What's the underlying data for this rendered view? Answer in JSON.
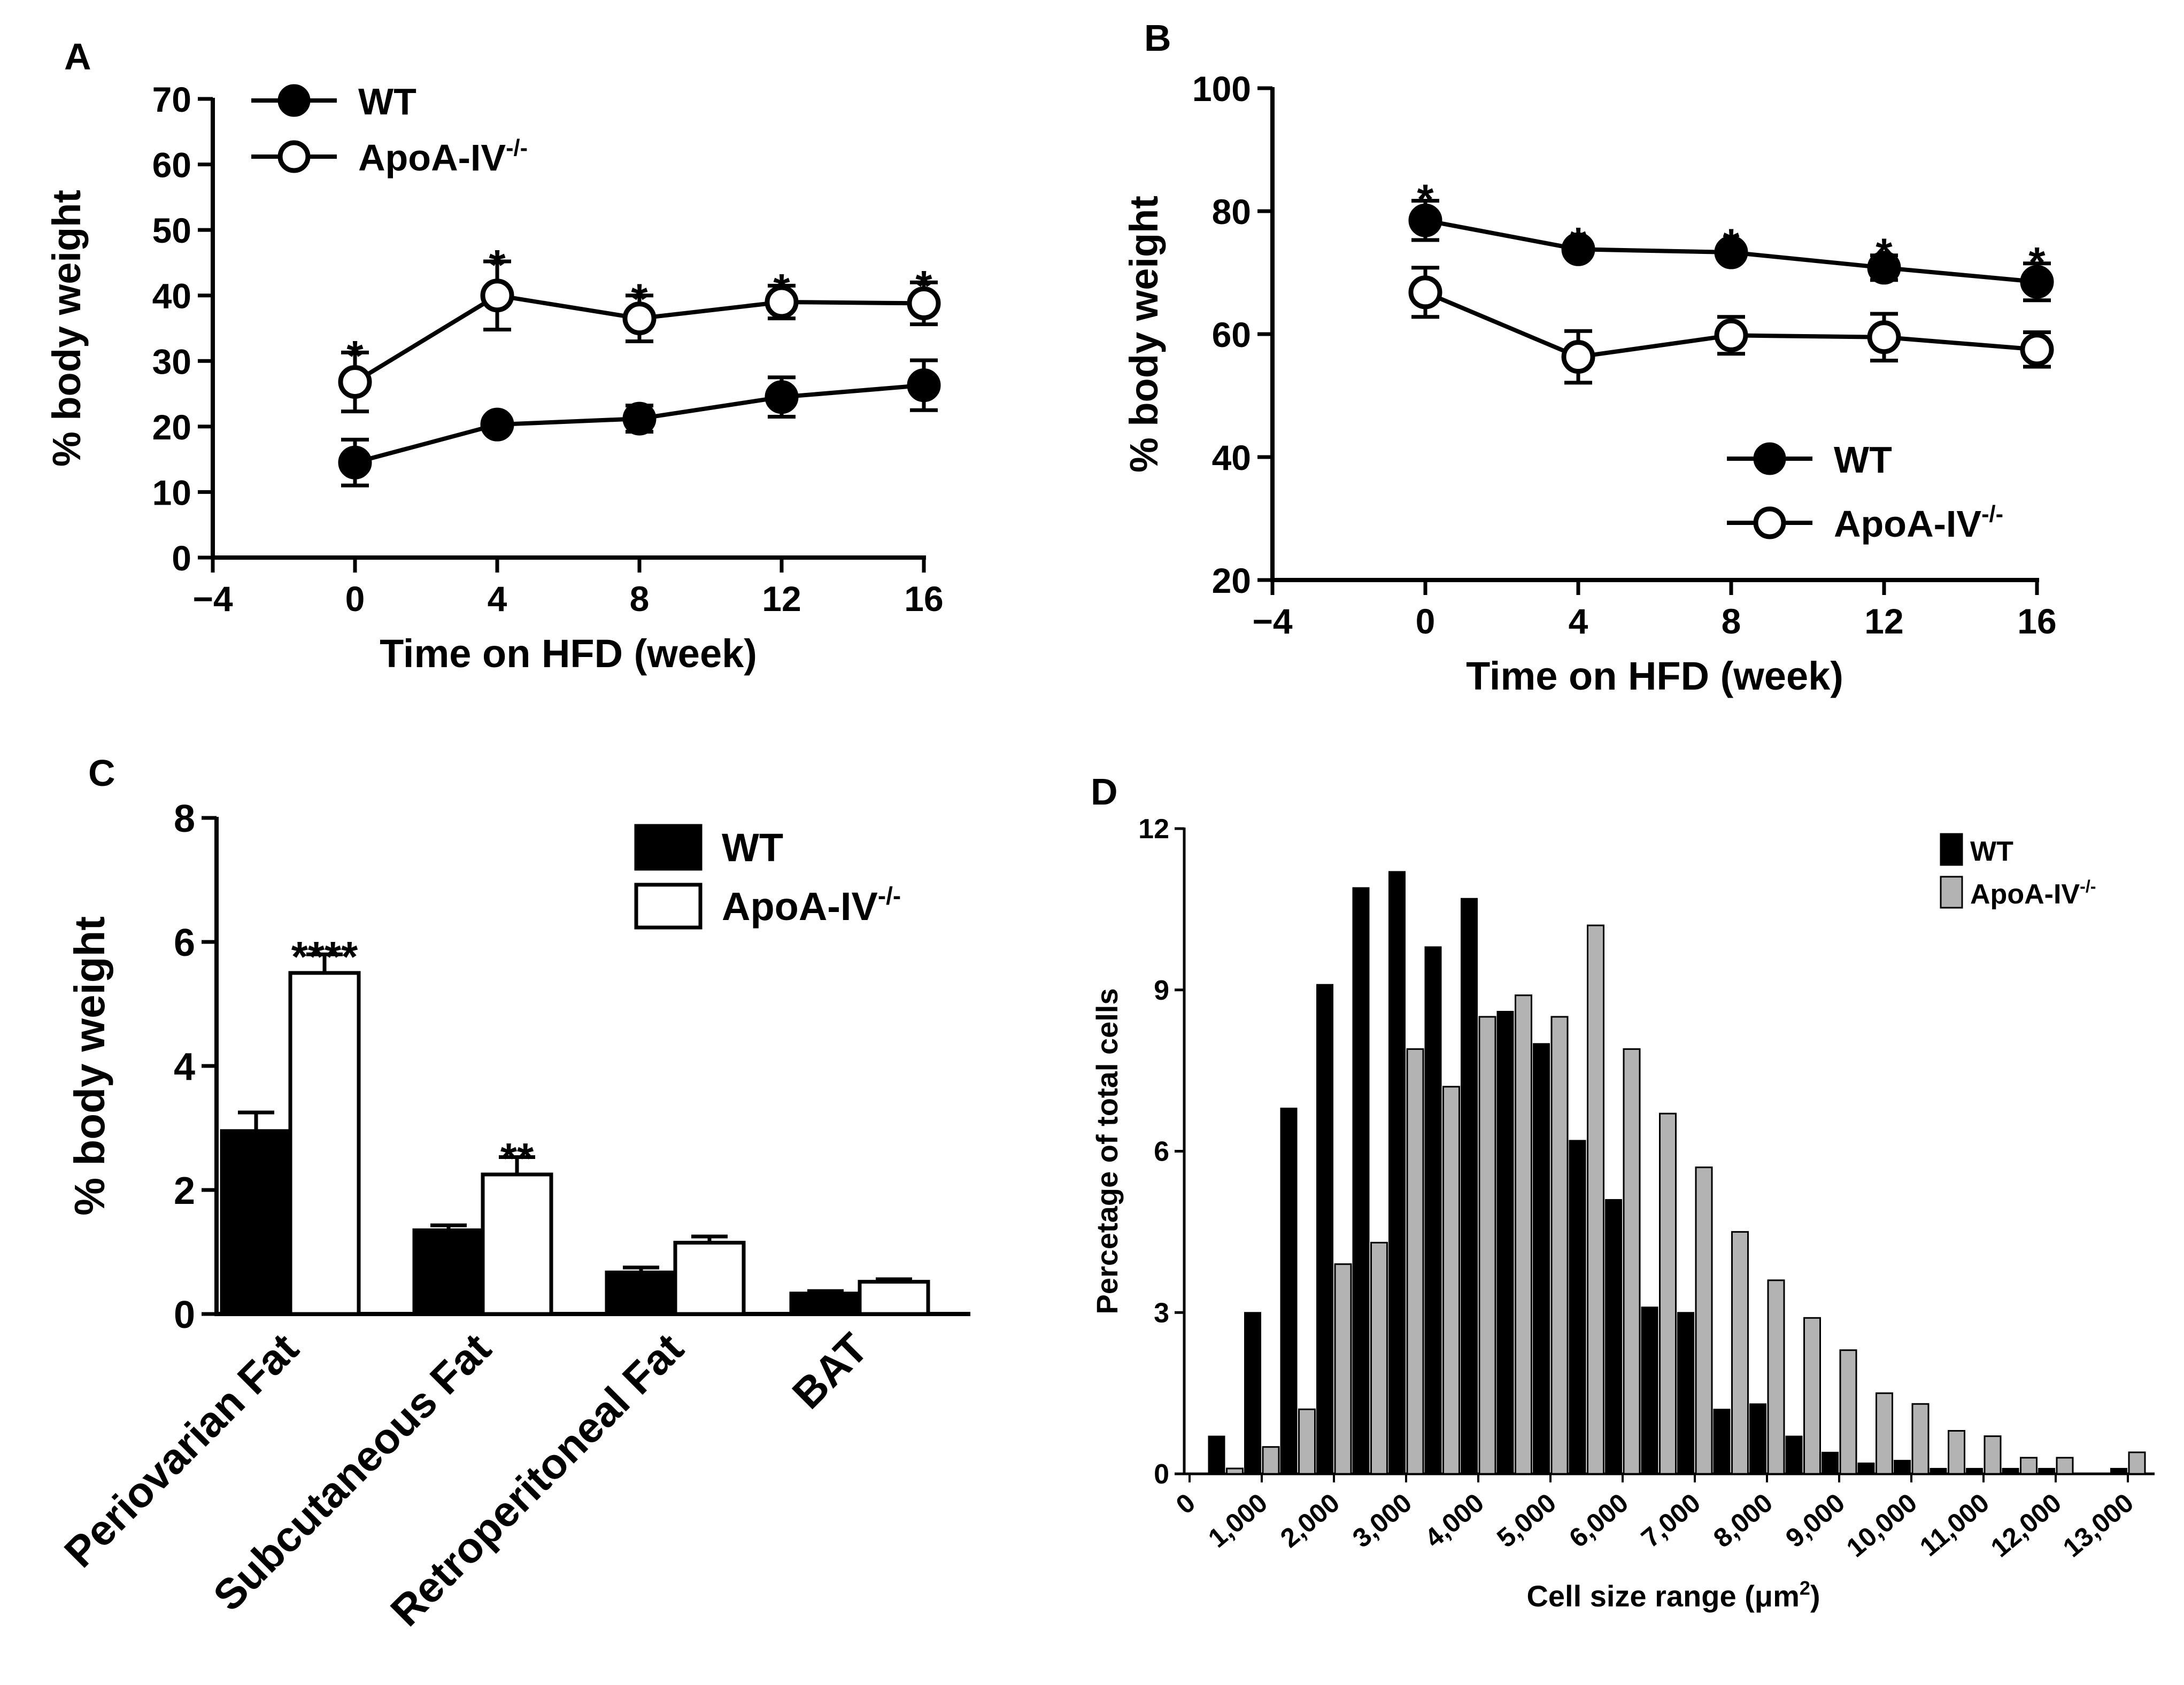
{
  "chart_data": [
    {
      "panel": "A",
      "type": "line",
      "xlabel": "Time on HFD (week)",
      "ylabel": "% body weight",
      "xlim": [
        -4,
        16
      ],
      "ylim": [
        0,
        70
      ],
      "xticks": [
        -4,
        0,
        4,
        8,
        12,
        16
      ],
      "xtick_labels": [
        "−4",
        "0",
        "4",
        "8",
        "12",
        "16"
      ],
      "yticks": [
        0,
        10,
        20,
        30,
        40,
        50,
        60,
        70
      ],
      "ytick_labels": [
        "0",
        "10",
        "20",
        "30",
        "40",
        "50",
        "60",
        "70"
      ],
      "legend": [
        {
          "name": "WT",
          "sup": "",
          "marker": "filled-circle"
        },
        {
          "name": "ApoA-IV",
          "sup": "-/-",
          "marker": "open-circle"
        }
      ],
      "series": [
        {
          "name": "WT",
          "x": [
            0,
            4,
            8,
            12,
            16
          ],
          "y": [
            14.5,
            20.3,
            21.2,
            24.5,
            26.3
          ],
          "err": [
            3.5,
            1.0,
            2.0,
            3.0,
            3.8
          ]
        },
        {
          "name": "ApoA-IV-/-",
          "x": [
            0,
            4,
            8,
            12,
            16
          ],
          "y": [
            26.8,
            40.0,
            36.5,
            39.0,
            38.8
          ],
          "err": [
            4.5,
            5.2,
            3.5,
            2.5,
            3.2
          ]
        }
      ],
      "annotations": [
        {
          "text": "*",
          "x": 0,
          "y": 31.8
        },
        {
          "text": "*",
          "x": 4,
          "y": 45.7
        },
        {
          "text": "*",
          "x": 8,
          "y": 40.5
        },
        {
          "text": "*",
          "x": 12,
          "y": 42.0
        },
        {
          "text": "*",
          "x": 16,
          "y": 42.5
        }
      ]
    },
    {
      "panel": "B",
      "type": "line",
      "xlabel": "Time on HFD (week)",
      "ylabel": "% body weight",
      "xlim": [
        -4,
        16
      ],
      "ylim": [
        20,
        100
      ],
      "xticks": [
        -4,
        0,
        4,
        8,
        12,
        16
      ],
      "xtick_labels": [
        "−4",
        "0",
        "4",
        "8",
        "12",
        "16"
      ],
      "yticks": [
        20,
        40,
        60,
        80,
        100
      ],
      "ytick_labels": [
        "20",
        "40",
        "60",
        "80",
        "100"
      ],
      "legend": [
        {
          "name": "WT",
          "sup": "",
          "marker": "filled-circle"
        },
        {
          "name": "ApoA-IV",
          "sup": "-/-",
          "marker": "open-circle"
        }
      ],
      "series": [
        {
          "name": "WT",
          "x": [
            0,
            4,
            8,
            12,
            16
          ],
          "y": [
            78.5,
            73.8,
            73.3,
            70.8,
            68.5
          ],
          "err": [
            3.2,
            0.8,
            1.0,
            2.0,
            3.0
          ]
        },
        {
          "name": "ApoA-IV-/-",
          "x": [
            0,
            4,
            8,
            12,
            16
          ],
          "y": [
            66.8,
            56.3,
            59.8,
            59.5,
            57.5
          ],
          "err": [
            4.0,
            4.2,
            3.0,
            3.8,
            2.8
          ]
        }
      ],
      "annotations": [
        {
          "text": "*",
          "x": 0,
          "y": 83.0
        },
        {
          "text": "*",
          "x": 4,
          "y": 76.0
        },
        {
          "text": "*",
          "x": 8,
          "y": 75.8
        },
        {
          "text": "*",
          "x": 12,
          "y": 74.2
        },
        {
          "text": "*",
          "x": 16,
          "y": 72.8
        }
      ]
    },
    {
      "panel": "C",
      "type": "bar",
      "ylabel": "% body weight",
      "ylim": [
        0,
        8
      ],
      "yticks": [
        0,
        2,
        4,
        6,
        8
      ],
      "ytick_labels": [
        "0",
        "2",
        "4",
        "6",
        "8"
      ],
      "categories": [
        "Periovarian Fat",
        "Subcutaneous Fat",
        "Retroperitoneal Fat",
        "BAT"
      ],
      "legend": [
        {
          "name": "WT",
          "sup": "",
          "fill": "#000000"
        },
        {
          "name": "ApoA-IV",
          "sup": "-/-",
          "fill": "#ffffff"
        }
      ],
      "series": [
        {
          "name": "WT",
          "values": [
            2.95,
            1.35,
            0.67,
            0.33
          ],
          "err": [
            0.3,
            0.08,
            0.08,
            0.04
          ]
        },
        {
          "name": "ApoA-IV-/-",
          "values": [
            5.5,
            2.25,
            1.15,
            0.52
          ],
          "err": [
            0.3,
            0.28,
            0.1,
            0.04
          ]
        }
      ],
      "annotations": [
        {
          "text": "****",
          "category": 0,
          "y": 6.0
        },
        {
          "text": "**",
          "category": 1,
          "y": 2.75
        }
      ]
    },
    {
      "panel": "D",
      "type": "bar",
      "xlabel": "Cell size range (μm",
      "xlabel_sup": "2",
      "xlabel_end": ")",
      "ylabel": "Percetage of total cells",
      "ylim": [
        0,
        12
      ],
      "yticks": [
        0,
        3,
        6,
        9,
        12
      ],
      "ytick_labels": [
        "0",
        "3",
        "6",
        "9",
        "12"
      ],
      "xtick_labels": [
        "0",
        "1,000",
        "2,000",
        "3,000",
        "4,000",
        "5,000",
        "6,000",
        "7,000",
        "8,000",
        "9,000",
        "10,000",
        "11,000",
        "12,000",
        "13,000"
      ],
      "legend": [
        {
          "name": "WT",
          "sup": "",
          "fill": "#000000"
        },
        {
          "name": "ApoA-IV",
          "sup": "-/-",
          "fill": "#b3b3b3"
        }
      ],
      "bin_width": 500,
      "bin_starts": [
        500,
        1000,
        1500,
        2000,
        2500,
        3000,
        3500,
        4000,
        4500,
        5000,
        5500,
        6000,
        6500,
        7000,
        7500,
        8000,
        8500,
        9000,
        9500,
        10000,
        10500,
        11000,
        11500,
        12000,
        12500,
        13000
      ],
      "series": [
        {
          "name": "WT",
          "values": [
            0.7,
            3.0,
            6.8,
            9.1,
            10.9,
            11.2,
            9.8,
            10.7,
            8.6,
            8.0,
            6.2,
            5.1,
            3.1,
            3.0,
            1.2,
            1.3,
            0.7,
            0.4,
            0.2,
            0.25,
            0.1,
            0.1,
            0.1,
            0.1,
            0.0,
            0.1
          ]
        },
        {
          "name": "ApoA-IV-/-",
          "values": [
            0.1,
            0.5,
            1.2,
            3.9,
            4.3,
            7.9,
            7.2,
            8.5,
            8.9,
            8.5,
            10.2,
            7.9,
            6.7,
            5.7,
            4.5,
            3.6,
            2.9,
            2.3,
            1.5,
            1.3,
            0.8,
            0.7,
            0.3,
            0.3,
            0.0,
            0.4
          ]
        }
      ]
    }
  ]
}
